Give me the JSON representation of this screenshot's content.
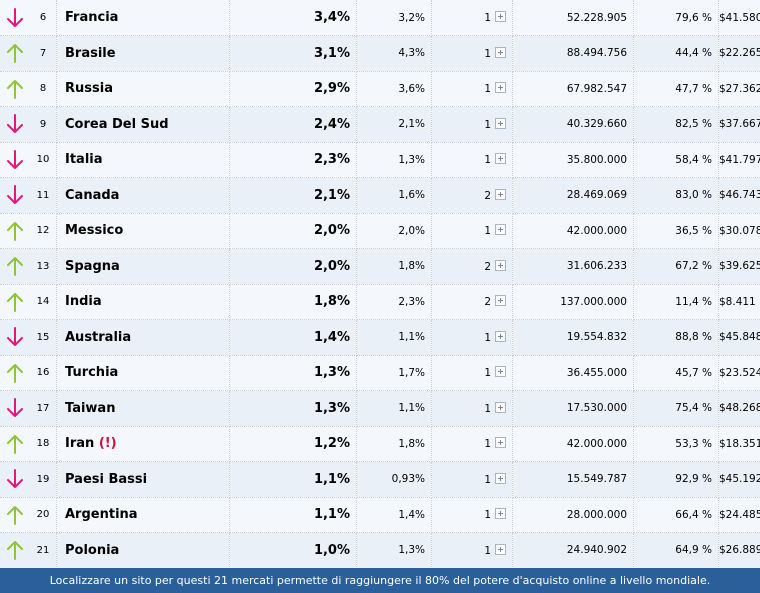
{
  "colors": {
    "down_arrow": "#e0187a",
    "up_arrow": "#8cc43c",
    "footer_bg": "#2a5f9a"
  },
  "rows": [
    {
      "trend": "down",
      "rank": "6",
      "country": "Francia",
      "share": "3,4%",
      "growth": "3,2%",
      "languages": "1",
      "users": "52.228.905",
      "penetration": "79,6 %",
      "gdp": "$41.580"
    },
    {
      "trend": "up",
      "rank": "7",
      "country": "Brasile",
      "share": "3,1%",
      "growth": "4,3%",
      "languages": "1",
      "users": "88.494.756",
      "penetration": "44,4 %",
      "gdp": "$22.265"
    },
    {
      "trend": "up",
      "rank": "8",
      "country": "Russia",
      "share": "2,9%",
      "growth": "3,6%",
      "languages": "1",
      "users": "67.982.547",
      "penetration": "47,7 %",
      "gdp": "$27.362"
    },
    {
      "trend": "down",
      "rank": "9",
      "country": "Corea Del Sud",
      "share": "2,4%",
      "growth": "2,1%",
      "languages": "1",
      "users": "40.329.660",
      "penetration": "82,5 %",
      "gdp": "$37.667"
    },
    {
      "trend": "down",
      "rank": "10",
      "country": "Italia",
      "share": "2,3%",
      "growth": "1,3%",
      "languages": "1",
      "users": "35.800.000",
      "penetration": "58,4 %",
      "gdp": "$41.797"
    },
    {
      "trend": "down",
      "rank": "11",
      "country": "Canada",
      "share": "2,1%",
      "growth": "1,6%",
      "languages": "2",
      "users": "28.469.069",
      "penetration": "83,0 %",
      "gdp": "$46.743"
    },
    {
      "trend": "up",
      "rank": "12",
      "country": "Messico",
      "share": "2,0%",
      "growth": "2,0%",
      "languages": "1",
      "users": "42.000.000",
      "penetration": "36,5 %",
      "gdp": "$30.078"
    },
    {
      "trend": "up",
      "rank": "13",
      "country": "Spagna",
      "share": "2,0%",
      "growth": "1,8%",
      "languages": "2",
      "users": "31.606.233",
      "penetration": "67,2 %",
      "gdp": "$39.625"
    },
    {
      "trend": "up",
      "rank": "14",
      "country": "India",
      "share": "1,8%",
      "growth": "2,3%",
      "languages": "2",
      "users": "137.000.000",
      "penetration": "11,4 %",
      "gdp": "$8.411"
    },
    {
      "trend": "down",
      "rank": "15",
      "country": "Australia",
      "share": "1,4%",
      "growth": "1,1%",
      "languages": "1",
      "users": "19.554.832",
      "penetration": "88,8 %",
      "gdp": "$45.848"
    },
    {
      "trend": "up",
      "rank": "16",
      "country": "Turchia",
      "share": "1,3%",
      "growth": "1,7%",
      "languages": "1",
      "users": "36.455.000",
      "penetration": "45,7 %",
      "gdp": "$23.524"
    },
    {
      "trend": "down",
      "rank": "17",
      "country": "Taiwan",
      "share": "1,3%",
      "growth": "1,1%",
      "languages": "1",
      "users": "17.530.000",
      "penetration": "75,4 %",
      "gdp": "$48.268"
    },
    {
      "trend": "up",
      "rank": "18",
      "country": "Iran",
      "country_flag": "(!)",
      "share": "1,2%",
      "growth": "1,8%",
      "languages": "1",
      "users": "42.000.000",
      "penetration": "53,3 %",
      "gdp": "$18.351"
    },
    {
      "trend": "down",
      "rank": "19",
      "country": "Paesi Bassi",
      "share": "1,1%",
      "growth": "0,93%",
      "languages": "1",
      "users": "15.549.787",
      "penetration": "92,9 %",
      "gdp": "$45.192"
    },
    {
      "trend": "up",
      "rank": "20",
      "country": "Argentina",
      "share": "1,1%",
      "growth": "1,4%",
      "languages": "1",
      "users": "28.000.000",
      "penetration": "66,4 %",
      "gdp": "$24.485"
    },
    {
      "trend": "up",
      "rank": "21",
      "country": "Polonia",
      "share": "1,0%",
      "growth": "1,3%",
      "languages": "1",
      "users": "24.940.902",
      "penetration": "64,9 %",
      "gdp": "$26.889"
    }
  ],
  "footer": {
    "text": "Localizzare un sito per questi 21 mercati permette di raggiungere il 80% del potere d'acquisto online a livello mondiale."
  }
}
